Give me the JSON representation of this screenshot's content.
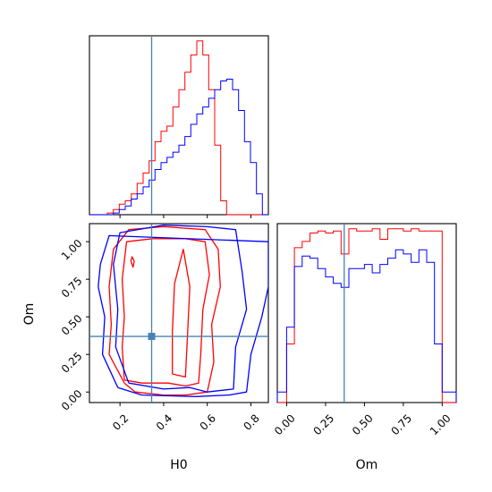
{
  "chart_data": {
    "type": "corner",
    "parameters": [
      "H0",
      "Om"
    ],
    "truth": {
      "H0": 0.345,
      "Om": 0.37
    },
    "colors": {
      "series_a": "#ff0000",
      "series_b": "#0000ff",
      "truth": "#4682b4"
    },
    "legend": "none",
    "grid": false,
    "panels": {
      "H0_hist": {
        "xlim": [
          0.06,
          0.88
        ],
        "bin_edges": [
          0.06,
          0.0873,
          0.1147,
          0.142,
          0.1693,
          0.1967,
          0.224,
          0.2513,
          0.2787,
          0.306,
          0.3333,
          0.3607,
          0.388,
          0.4153,
          0.4427,
          0.47,
          0.4973,
          0.5247,
          0.552,
          0.5793,
          0.6067,
          0.634,
          0.6613,
          0.6887,
          0.716,
          0.7433,
          0.7707,
          0.798,
          0.8253,
          0.8527,
          0.88
        ],
        "series": [
          {
            "color": "red",
            "counts": [
              0,
              0,
              0,
              0.01,
              0.03,
              0.06,
              0.08,
              0.12,
              0.18,
              0.24,
              0.31,
              0.42,
              0.48,
              0.51,
              0.62,
              0.72,
              0.82,
              0.92,
              1.0,
              0.92,
              0.72,
              0.4,
              0.08,
              0,
              0,
              0,
              0,
              0,
              0,
              0
            ]
          },
          {
            "color": "blue",
            "counts": [
              0,
              0,
              0,
              0,
              0.01,
              0.03,
              0.05,
              0.09,
              0.12,
              0.16,
              0.2,
              0.26,
              0.3,
              0.33,
              0.36,
              0.4,
              0.45,
              0.52,
              0.58,
              0.62,
              0.67,
              0.72,
              0.77,
              0.78,
              0.72,
              0.6,
              0.42,
              0.3,
              0.12,
              0
            ]
          }
        ]
      },
      "Om_hist": {
        "xlim": [
          -0.06,
          1.09
        ],
        "xticks": [
          "0.00",
          "0.25",
          "0.50",
          "0.75",
          "1.00"
        ],
        "bin_edges": [
          -0.06,
          0.0,
          0.05,
          0.1,
          0.15,
          0.2,
          0.25,
          0.3,
          0.35,
          0.4,
          0.45,
          0.5,
          0.55,
          0.6,
          0.65,
          0.7,
          0.75,
          0.8,
          0.85,
          0.9,
          0.95,
          1.0,
          1.09
        ],
        "series": [
          {
            "color": "red",
            "counts": [
              0,
              0.28,
              0.74,
              0.77,
              0.81,
              0.82,
              0.81,
              0.82,
              0.71,
              0.83,
              0.82,
              0.82,
              0.83,
              0.78,
              0.83,
              0.83,
              0.82,
              0.83,
              0.82,
              0.82,
              0.82,
              0
            ]
          },
          {
            "color": "blue",
            "counts": [
              0.05,
              0.36,
              0.65,
              0.7,
              0.69,
              0.64,
              0.6,
              0.57,
              0.55,
              0.64,
              0.64,
              0.66,
              0.62,
              0.66,
              0.69,
              0.73,
              0.71,
              0.67,
              0.73,
              0.67,
              0.28,
              0.05
            ]
          }
        ]
      },
      "joint": {
        "xlim": [
          0.06,
          0.88
        ],
        "ylim": [
          -0.07,
          1.12
        ],
        "xticks": [
          "0.2",
          "0.4",
          "0.6",
          "0.8"
        ],
        "yticks": [
          "0.00",
          "0.25",
          "0.50",
          "0.75",
          "1.00"
        ],
        "contours": [
          {
            "color": "red",
            "level": "inner",
            "points": [
              [
                0.22,
                0.08
              ],
              [
                0.3,
                0.06
              ],
              [
                0.42,
                0.06
              ],
              [
                0.5,
                0.04
              ],
              [
                0.56,
                0.06
              ],
              [
                0.57,
                0.25
              ],
              [
                0.58,
                0.55
              ],
              [
                0.61,
                0.78
              ],
              [
                0.59,
                1.0
              ],
              [
                0.5,
                1.02
              ],
              [
                0.35,
                1.02
              ],
              [
                0.23,
                1.0
              ],
              [
                0.21,
                0.75
              ],
              [
                0.22,
                0.5
              ],
              [
                0.21,
                0.3
              ],
              [
                0.22,
                0.08
              ]
            ]
          },
          {
            "color": "red",
            "level": "outer",
            "points": [
              [
                0.22,
                0.06
              ],
              [
                0.27,
                0.0
              ],
              [
                0.4,
                -0.02
              ],
              [
                0.5,
                -0.02
              ],
              [
                0.6,
                0.0
              ],
              [
                0.63,
                0.2
              ],
              [
                0.62,
                0.45
              ],
              [
                0.66,
                0.7
              ],
              [
                0.65,
                0.95
              ],
              [
                0.59,
                1.08
              ],
              [
                0.4,
                1.1
              ],
              [
                0.24,
                1.08
              ],
              [
                0.17,
                0.95
              ],
              [
                0.15,
                0.7
              ],
              [
                0.16,
                0.45
              ],
              [
                0.15,
                0.25
              ],
              [
                0.22,
                0.06
              ]
            ]
          },
          {
            "color": "red",
            "level": "island",
            "points": [
              [
                0.44,
                0.12
              ],
              [
                0.5,
                0.1
              ],
              [
                0.51,
                0.4
              ],
              [
                0.52,
                0.7
              ],
              [
                0.49,
                0.95
              ],
              [
                0.45,
                0.72
              ],
              [
                0.44,
                0.4
              ],
              [
                0.44,
                0.12
              ]
            ]
          },
          {
            "color": "red",
            "level": "island",
            "points": [
              [
                0.25,
                0.87
              ],
              [
                0.26,
                0.83
              ],
              [
                0.265,
                0.87
              ],
              [
                0.255,
                0.9
              ],
              [
                0.25,
                0.87
              ]
            ]
          },
          {
            "color": "blue",
            "level": "inner",
            "points": [
              [
                0.24,
                0.06
              ],
              [
                0.4,
                0.02
              ],
              [
                0.52,
                0.03
              ],
              [
                0.6,
                0.0
              ],
              [
                0.72,
                0.02
              ],
              [
                0.73,
                0.3
              ],
              [
                0.78,
                0.55
              ],
              [
                0.76,
                0.8
              ],
              [
                0.73,
                1.08
              ],
              [
                0.6,
                1.1
              ],
              [
                0.4,
                1.11
              ],
              [
                0.2,
                1.06
              ],
              [
                0.17,
                0.85
              ],
              [
                0.19,
                0.55
              ],
              [
                0.18,
                0.3
              ],
              [
                0.24,
                0.06
              ]
            ]
          },
          {
            "color": "blue",
            "level": "outer",
            "points": [
              [
                0.19,
                0.03
              ],
              [
                0.3,
                -0.02
              ],
              [
                0.55,
                -0.03
              ],
              [
                0.7,
                -0.02
              ],
              [
                0.78,
                0.0
              ],
              [
                0.8,
                0.25
              ],
              [
                0.85,
                0.5
              ],
              [
                0.88,
                0.7
              ],
              [
                0.88,
                1.0
              ],
              [
                0.15,
                1.04
              ],
              [
                0.11,
                0.85
              ],
              [
                0.1,
                0.7
              ],
              [
                0.13,
                0.5
              ],
              [
                0.12,
                0.25
              ],
              [
                0.19,
                0.03
              ]
            ]
          }
        ]
      }
    }
  }
}
